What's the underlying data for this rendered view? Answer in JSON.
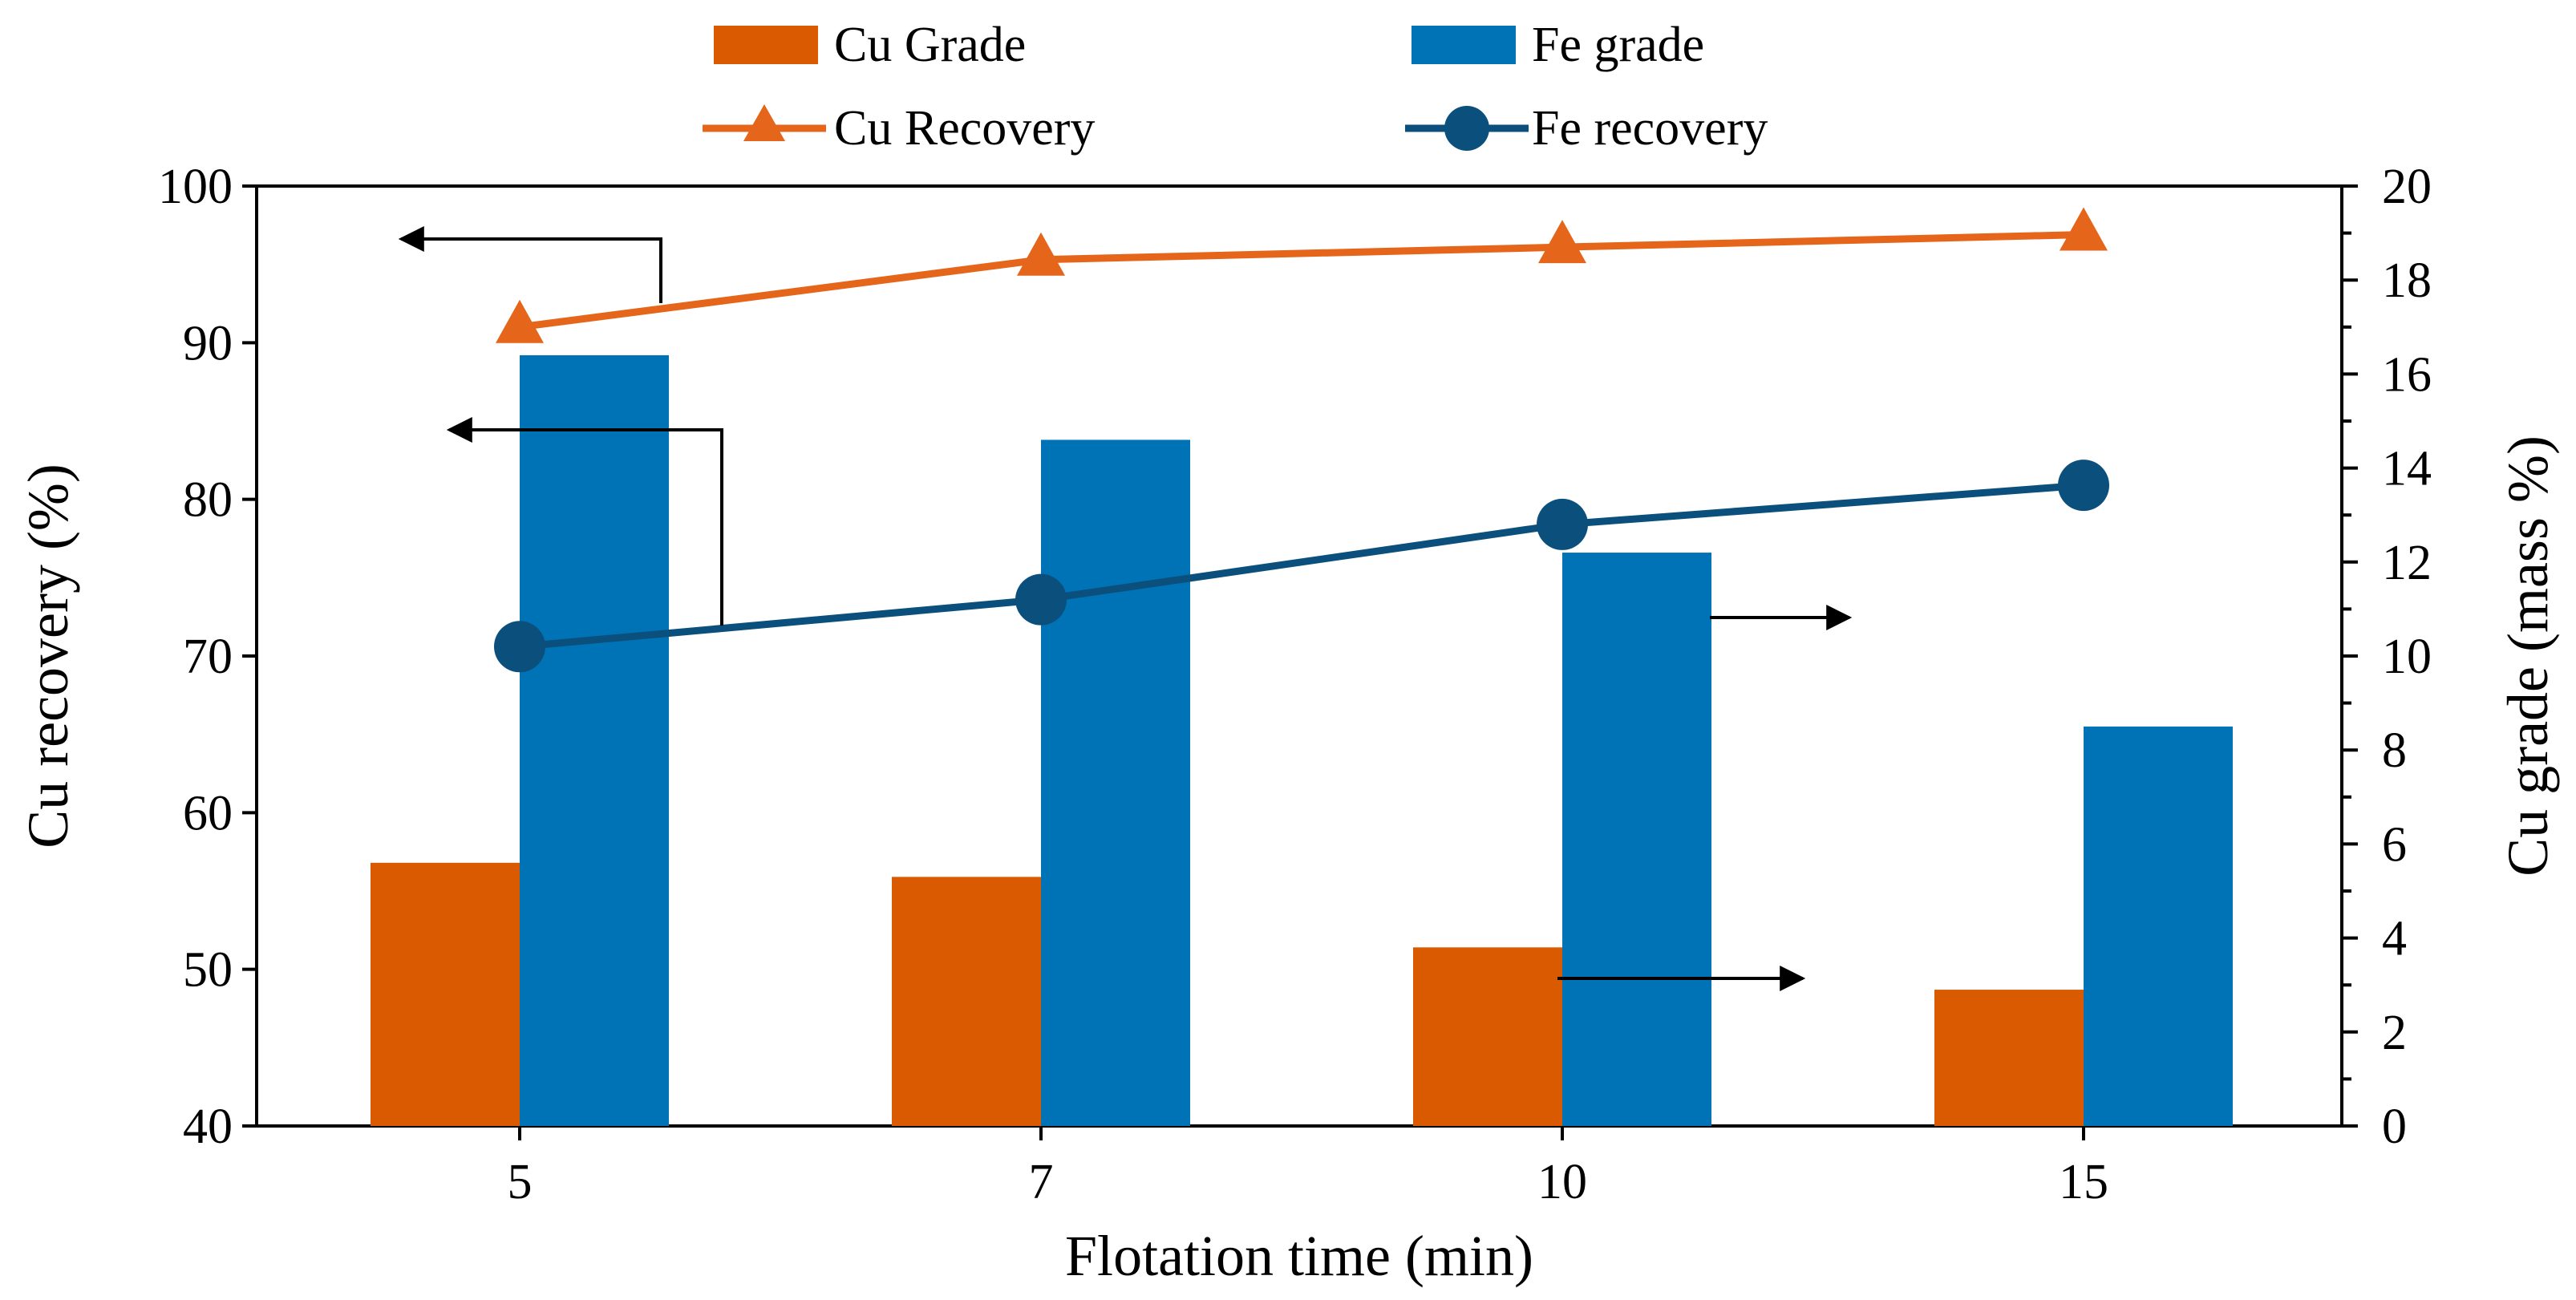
{
  "chart_data": {
    "type": "bar",
    "categories": [
      "5",
      "7",
      "10",
      "15"
    ],
    "xlabel": "Flotation time (min)",
    "ylabel": "Cu recovery (%)",
    "y2label": "Cu grade (mass %)",
    "ylim": [
      40,
      100
    ],
    "y2lim": [
      0,
      20
    ],
    "yticks": [
      "40",
      "50",
      "60",
      "70",
      "80",
      "90",
      "100"
    ],
    "y2ticks": [
      "0",
      "2",
      "4",
      "6",
      "8",
      "10",
      "12",
      "14",
      "16",
      "18",
      "20"
    ],
    "grid": false,
    "legend_position": "top",
    "bar_series": [
      {
        "name": "Cu Grade",
        "axis": "right",
        "color": "#D95A00",
        "values": [
          5.6,
          5.3,
          3.8,
          2.9
        ]
      },
      {
        "name": "Fe grade",
        "axis": "right",
        "color": "#0073B7",
        "values": [
          16.4,
          14.6,
          12.2,
          8.5
        ]
      }
    ],
    "line_series": [
      {
        "name": "Cu Recovery",
        "axis": "left",
        "color": "#E5651A",
        "marker": "triangle",
        "values": [
          91.0,
          95.3,
          96.1,
          96.9
        ]
      },
      {
        "name": "Fe recovery",
        "axis": "left",
        "color": "#0B4F7C",
        "marker": "circle",
        "values": [
          70.6,
          73.6,
          78.4,
          80.9
        ]
      }
    ],
    "annotations": [
      {
        "kind": "arrow",
        "points_to": "left",
        "series": "Cu Recovery"
      },
      {
        "kind": "arrow",
        "points_to": "left",
        "series": "Fe recovery"
      },
      {
        "kind": "arrow",
        "points_to": "right",
        "series": "Fe grade"
      },
      {
        "kind": "arrow",
        "points_to": "right",
        "series": "Cu Grade"
      }
    ]
  }
}
